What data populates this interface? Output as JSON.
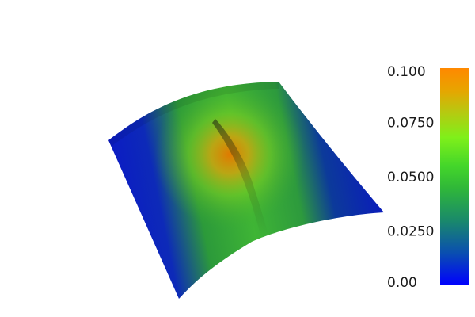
{
  "colorbar": {
    "ticks": [
      {
        "value": 0.1,
        "label": "0.100"
      },
      {
        "value": 0.075,
        "label": "0.0750"
      },
      {
        "value": 0.05,
        "label": "0.0500"
      },
      {
        "value": 0.025,
        "label": "0.0250"
      },
      {
        "value": 0.0,
        "label": "0.00"
      }
    ],
    "range": [
      0.0,
      0.1
    ],
    "colormap": [
      {
        "stop": 0.0,
        "color": "#0000ff"
      },
      {
        "stop": 0.15,
        "color": "#0a4fb0"
      },
      {
        "stop": 0.3,
        "color": "#1a8a6a"
      },
      {
        "stop": 0.45,
        "color": "#30b838"
      },
      {
        "stop": 0.55,
        "color": "#44d62a"
      },
      {
        "stop": 0.68,
        "color": "#7ff01a"
      },
      {
        "stop": 0.8,
        "color": "#b8c810"
      },
      {
        "stop": 0.9,
        "color": "#e8a400"
      },
      {
        "stop": 1.0,
        "color": "#ff8800"
      }
    ]
  },
  "surface": {
    "colors": {
      "low": "#0a18c8",
      "mid": "#3aaa30",
      "high": "#e07a00",
      "shadow": "#1a2a3a"
    }
  }
}
